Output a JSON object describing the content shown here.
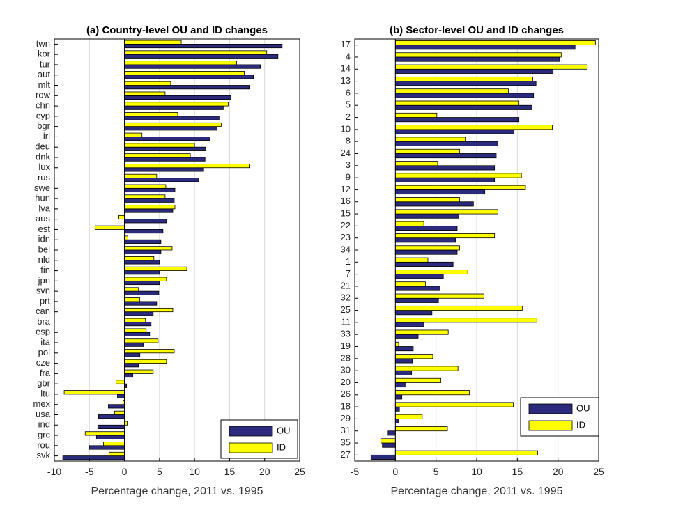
{
  "colors": {
    "OU": "#2b2a7c",
    "ID": "#ffff00",
    "grid": "#d9d9d9",
    "axis": "#000000"
  },
  "chart_data": [
    {
      "type": "bar",
      "orientation": "horizontal",
      "title": "(a) Country-level OU and ID changes",
      "xlabel": "Percentage change, 2011 vs. 1995",
      "xlim": [
        -10,
        25
      ],
      "xticks": [
        -10,
        -5,
        0,
        5,
        10,
        15,
        20,
        25
      ],
      "grid": true,
      "legend_position": "bottom-right",
      "categories": [
        "twn",
        "kor",
        "tur",
        "aut",
        "mlt",
        "row",
        "chn",
        "cyp",
        "bgr",
        "irl",
        "deu",
        "dnk",
        "lux",
        "rus",
        "swe",
        "hun",
        "lva",
        "aus",
        "est",
        "idn",
        "bel",
        "nld",
        "fin",
        "jpn",
        "svn",
        "prt",
        "can",
        "bra",
        "esp",
        "ita",
        "pol",
        "cze",
        "fra",
        "gbr",
        "ltu",
        "mex",
        "usa",
        "ind",
        "grc",
        "rou",
        "svk"
      ],
      "series": [
        {
          "name": "OU",
          "values": [
            22.5,
            21.9,
            19.4,
            18.4,
            17.9,
            15.2,
            14.1,
            13.5,
            13.2,
            12.2,
            11.6,
            11.5,
            11.3,
            10.6,
            7.2,
            7.1,
            6.9,
            6.0,
            5.5,
            5.2,
            5.2,
            5.0,
            5.0,
            5.0,
            4.9,
            4.6,
            4.1,
            3.8,
            3.6,
            2.7,
            2.2,
            2.0,
            1.2,
            0.3,
            -1.0,
            -2.3,
            -3.7,
            -3.8,
            -4.0,
            -5.0,
            -8.8
          ]
        },
        {
          "name": "ID",
          "values": [
            8.1,
            20.3,
            16.0,
            17.1,
            6.6,
            5.8,
            14.8,
            7.6,
            13.8,
            2.5,
            10.0,
            9.4,
            17.9,
            4.6,
            5.9,
            5.8,
            7.2,
            -0.8,
            -4.2,
            0.5,
            6.8,
            4.2,
            8.9,
            6.0,
            2.0,
            2.2,
            6.9,
            3.0,
            3.1,
            4.8,
            7.1,
            6.0,
            4.1,
            -1.2,
            -8.6,
            -0.2,
            -1.4,
            0.4,
            -5.6,
            -3.0,
            -2.2
          ]
        }
      ]
    },
    {
      "type": "bar",
      "orientation": "horizontal",
      "title": "(b) Sector-level OU and ID changes",
      "xlabel": "Percentage change, 2011 vs. 1995",
      "xlim": [
        -5,
        25
      ],
      "xticks": [
        -5,
        0,
        5,
        10,
        15,
        20,
        25
      ],
      "grid": true,
      "legend_position": "bottom-right",
      "categories": [
        "17",
        "4",
        "14",
        "13",
        "6",
        "5",
        "2",
        "10",
        "8",
        "24",
        "3",
        "9",
        "12",
        "16",
        "15",
        "22",
        "23",
        "34",
        "1",
        "7",
        "21",
        "32",
        "25",
        "11",
        "33",
        "19",
        "28",
        "30",
        "20",
        "26",
        "18",
        "29",
        "31",
        "35",
        "27"
      ],
      "series": [
        {
          "name": "OU",
          "values": [
            22.1,
            20.2,
            19.4,
            17.3,
            17.0,
            16.8,
            15.2,
            14.6,
            12.6,
            12.4,
            12.2,
            12.2,
            11.0,
            9.6,
            7.8,
            7.6,
            7.4,
            7.6,
            7.1,
            5.9,
            5.5,
            5.3,
            4.5,
            3.5,
            2.8,
            2.2,
            2.1,
            2.0,
            1.2,
            0.8,
            0.5,
            0.4,
            -0.9,
            -1.6,
            -3.0
          ]
        },
        {
          "name": "ID",
          "values": [
            24.6,
            20.4,
            23.6,
            16.9,
            13.9,
            15.2,
            5.1,
            19.3,
            8.6,
            7.9,
            5.2,
            15.5,
            16.0,
            7.9,
            12.6,
            3.5,
            12.2,
            7.9,
            4.0,
            8.9,
            3.7,
            10.9,
            15.6,
            17.4,
            6.5,
            0.4,
            4.6,
            7.7,
            5.6,
            9.1,
            14.5,
            3.3,
            6.4,
            -1.8,
            17.5
          ]
        }
      ]
    }
  ]
}
